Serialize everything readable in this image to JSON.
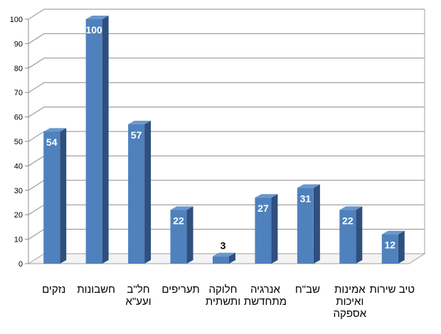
{
  "chart_data": {
    "type": "bar",
    "title": "",
    "xlabel": "",
    "ylabel": "",
    "ylim": [
      0,
      100
    ],
    "yticks": [
      0,
      10,
      20,
      30,
      40,
      50,
      60,
      70,
      80,
      90,
      100
    ],
    "grid": true,
    "style": "3d",
    "bar_color": "#4f81bd",
    "categories": [
      [
        "נזקים"
      ],
      [
        "חשבונות"
      ],
      [
        "חל\"ב",
        "ועע\"א"
      ],
      [
        "תעריפים"
      ],
      [
        "חלוקה",
        "ותשתית"
      ],
      [
        "אנרגיה",
        "מתחדשת"
      ],
      [
        "שב\"ח"
      ],
      [
        "אמינות",
        "ואיכות",
        "אספקה"
      ],
      [
        "טיב שירות"
      ]
    ],
    "values": [
      54,
      100,
      57,
      22,
      3,
      27,
      31,
      22,
      12
    ]
  }
}
